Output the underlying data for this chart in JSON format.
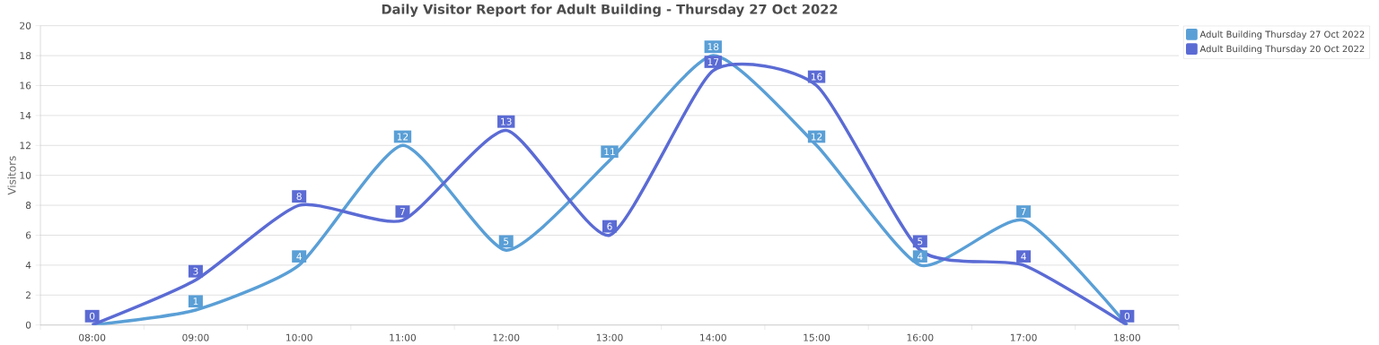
{
  "chart_data": {
    "type": "line",
    "title": "Daily Visitor Report for Adult Building - Thursday 27 Oct 2022",
    "ylabel": "Visitors",
    "categories": [
      "08:00",
      "09:00",
      "10:00",
      "11:00",
      "12:00",
      "13:00",
      "14:00",
      "15:00",
      "16:00",
      "17:00",
      "18:00"
    ],
    "series": [
      {
        "name": "Adult Building Thursday 27 Oct 2022",
        "color": "#5a9fd6",
        "values": [
          0,
          1,
          4,
          12,
          5,
          11,
          18,
          12,
          4,
          7,
          0
        ],
        "value_labels": [
          null,
          "1",
          "4",
          "12",
          "5",
          "11",
          "18",
          "12",
          "4",
          "7",
          null
        ]
      },
      {
        "name": "Adult Building Thursday 20 Oct 2022",
        "color": "#5b6bd4",
        "values": [
          0,
          3,
          8,
          7,
          13,
          6,
          17,
          16,
          5,
          4,
          0
        ],
        "value_labels": [
          "0",
          "3",
          "8",
          "7",
          "13",
          "6",
          "17",
          "16",
          "5",
          "4",
          "0"
        ]
      }
    ],
    "ylim": [
      0,
      20
    ],
    "yticks": [
      0,
      2,
      4,
      6,
      8,
      10,
      12,
      14,
      16,
      18,
      20
    ],
    "grid": "y",
    "legend": "top right",
    "marker": "none",
    "line_style": "solid"
  }
}
